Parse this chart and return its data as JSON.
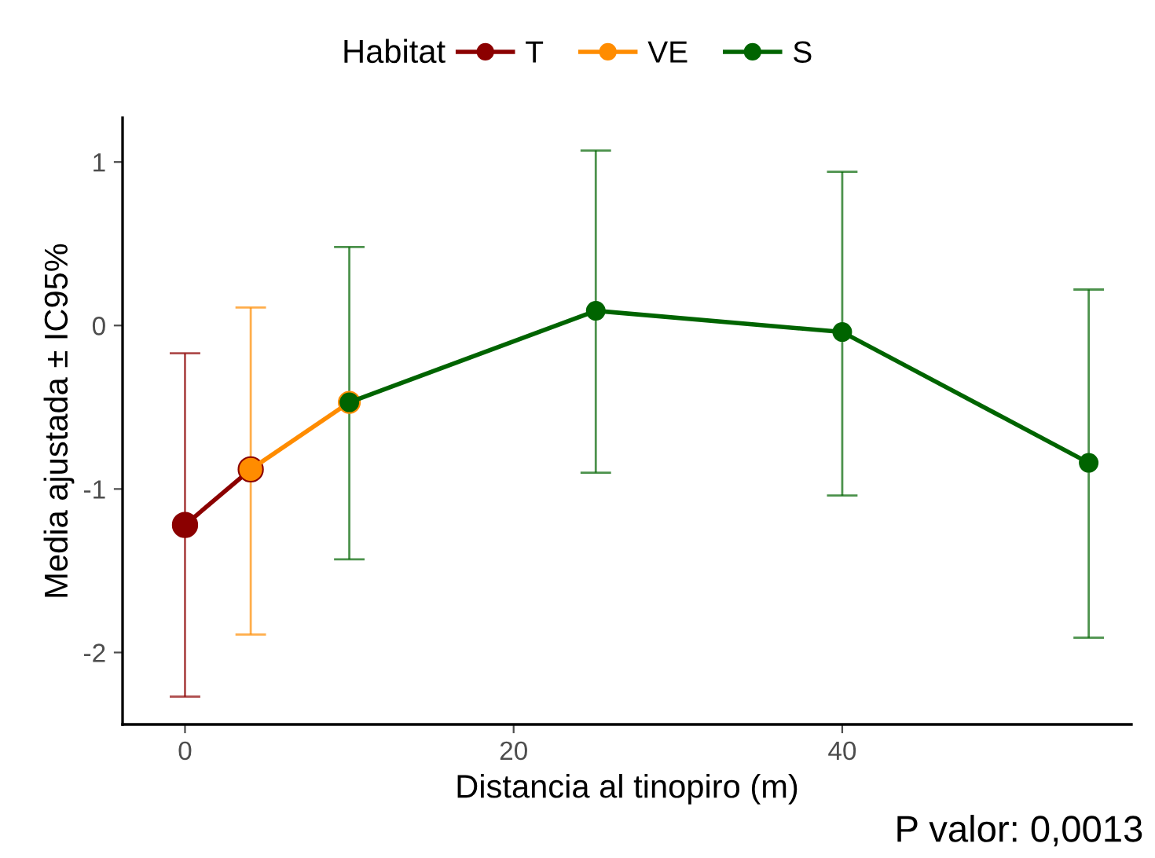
{
  "chart_data": {
    "type": "line",
    "xlabel": "Distancia al tinopiro (m)",
    "ylabel": "Media ajustada ± IC95%",
    "legend_title": "Habitat",
    "legend": "top",
    "marker": "circle",
    "line_style": "solid",
    "grid": false,
    "xlim": [
      -3.8,
      57.6
    ],
    "xticks": [
      0,
      20,
      40
    ],
    "ylim": [
      -2.44,
      1.27
    ],
    "yticks": [
      -2,
      -1,
      0,
      1
    ],
    "series": [
      {
        "name": "T",
        "color": "#8b0000",
        "x": [
          0,
          4
        ],
        "values": [
          -1.22,
          -0.88
        ],
        "errors": [
          [
            -2.27,
            -0.17
          ],
          null
        ]
      },
      {
        "name": "VE",
        "color": "#ff8c00",
        "x": [
          4,
          10
        ],
        "values": [
          -0.88,
          -0.47
        ],
        "errors": [
          [
            -1.89,
            0.11
          ],
          null
        ]
      },
      {
        "name": "S",
        "color": "#006400",
        "x": [
          10,
          25,
          40,
          55
        ],
        "values": [
          -0.47,
          0.09,
          -0.04,
          -0.84
        ],
        "errors": [
          [
            -1.43,
            0.48
          ],
          [
            -0.9,
            1.07
          ],
          [
            -1.04,
            0.94
          ],
          [
            -1.91,
            0.22
          ]
        ]
      }
    ],
    "annotations": [
      "P valor: 0,0013"
    ]
  }
}
